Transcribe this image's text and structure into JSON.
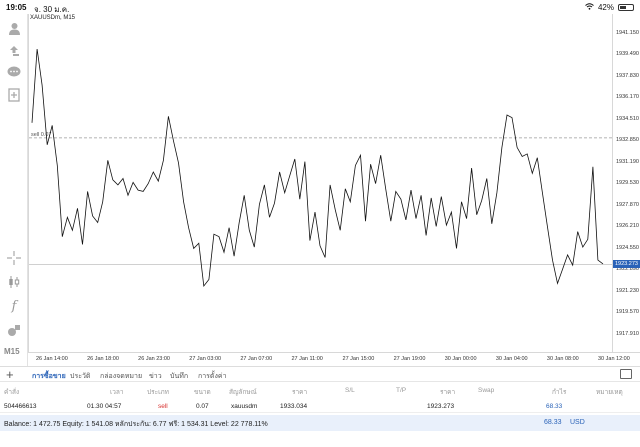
{
  "status_bar": {
    "time": "19:05",
    "date": "จ. 30 ม.ค.",
    "battery": "42%",
    "battery_level": 0.42
  },
  "chart": {
    "symbol_title": "XAUUSDm, M15",
    "sell_marker": "sell 0.07",
    "current_price": "1923.273",
    "timeframe": "M15"
  },
  "toolbar_icons": [
    "account-icon",
    "trade-icon",
    "chat-icon",
    "new-order-icon",
    "crosshair-icon",
    "candles-icon",
    "indicators-icon",
    "objects-icon"
  ],
  "chart_data": {
    "type": "line",
    "title": "XAUUSDm, M15",
    "price_ticks": [
      "1941.150",
      "1939.490",
      "1937.830",
      "1936.170",
      "1934.510",
      "1932.850",
      "1931.190",
      "1929.530",
      "1927.870",
      "1926.210",
      "1924.550",
      "1922.890",
      "1921.230",
      "1919.570",
      "1917.910"
    ],
    "time_ticks": [
      "26 Jan 14:00",
      "26 Jan 18:00",
      "26 Jan 23:00",
      "27 Jan 03:00",
      "27 Jan 07:00",
      "27 Jan 11:00",
      "27 Jan 15:00",
      "27 Jan 19:00",
      "30 Jan 00:00",
      "30 Jan 04:00",
      "30 Jan 08:00",
      "30 Jan 12:00"
    ],
    "ylim": [
      1916.5,
      1942.6
    ],
    "sell_level": 1933.034,
    "current_level": 1923.273,
    "close_prices": [
      1934.2,
      1939.9,
      1937.1,
      1932.5,
      1934.0,
      1930.9,
      1925.4,
      1926.9,
      1925.9,
      1927.6,
      1924.8,
      1928.9,
      1927.0,
      1926.5,
      1928.1,
      1931.3,
      1929.8,
      1929.4,
      1929.9,
      1928.6,
      1929.6,
      1929.0,
      1928.9,
      1929.5,
      1930.4,
      1929.7,
      1931.3,
      1934.7,
      1932.8,
      1931.1,
      1928.1,
      1926.1,
      1924.5,
      1924.9,
      1921.6,
      1922.1,
      1925.6,
      1925.4,
      1924.2,
      1926.1,
      1923.9,
      1926.5,
      1928.6,
      1925.9,
      1924.6,
      1927.9,
      1929.4,
      1926.9,
      1928.0,
      1930.4,
      1928.8,
      1930.1,
      1931.4,
      1928.3,
      1931.2,
      1925.1,
      1927.3,
      1924.7,
      1923.8,
      1929.4,
      1927.5,
      1925.9,
      1929.1,
      1928.1,
      1930.9,
      1931.7,
      1926.6,
      1931.0,
      1929.5,
      1931.7,
      1929.1,
      1926.6,
      1928.9,
      1928.3,
      1926.7,
      1929.0,
      1926.8,
      1928.6,
      1925.5,
      1928.4,
      1926.2,
      1928.5,
      1926.3,
      1927.3,
      1924.5,
      1928.1,
      1926.8,
      1930.7,
      1927.1,
      1928.2,
      1929.9,
      1926.4,
      1928.8,
      1932.3,
      1934.8,
      1934.6,
      1932.3,
      1931.6,
      1931.8,
      1930.3,
      1931.5,
      1928.8,
      1926.2,
      1923.6,
      1921.8,
      1922.9,
      1924.0,
      1923.2,
      1925.8,
      1924.6,
      1925.2,
      1930.8,
      1923.6,
      1923.3
    ],
    "grid": false
  },
  "tabs": [
    "การซื้อขาย",
    "ประวัติ",
    "กล่องจดหมาย",
    "ข่าว",
    "บันทึก",
    "การตั้งค่า"
  ],
  "table": {
    "headers": [
      "คำสั่ง",
      "เวลา",
      "ประเภท",
      "ขนาด",
      "สัญลักษณ์",
      "ราคา",
      "S/L",
      "T/P",
      "ราคา",
      "Swap",
      "กำไร",
      "หมายเหตุ"
    ],
    "row": {
      "order": "504466613",
      "time": "01.30 04:57",
      "type": "sell",
      "size": "0.07",
      "symbol": "xauusdm",
      "open_price": "1933.034",
      "sl": "",
      "tp": "",
      "current_price": "1923.273",
      "swap": "",
      "profit": "68.33",
      "note": ""
    }
  },
  "balance": {
    "text": "Balance: 1 472.75 Equity: 1 541.08 หลักประกัน: 6.77 ฟรี: 1 534.31 Level: 22 778.11%",
    "profit": "68.33",
    "currency": "USD"
  },
  "colors": {
    "accent": "#2a63b8",
    "sell": "#d8312f",
    "balance_bg": "#e9f0fb"
  }
}
